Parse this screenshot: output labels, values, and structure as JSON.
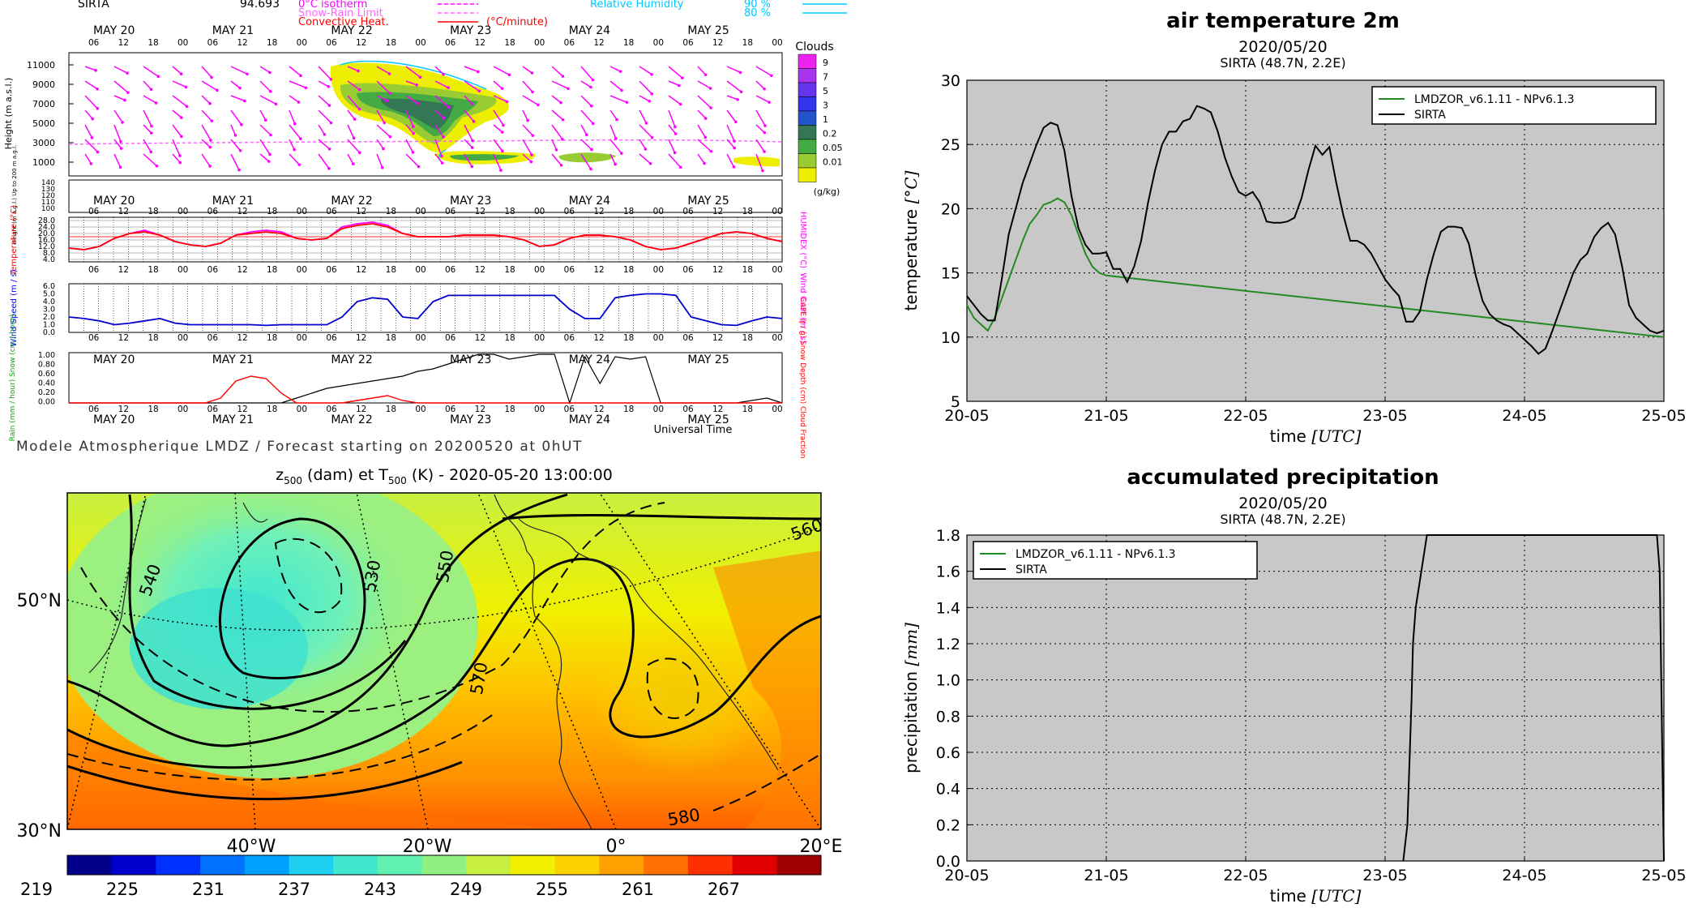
{
  "meteogram": {
    "station": "SIRTA",
    "station_value": "94.693",
    "legend_left": [
      {
        "label": "0°C isotherm",
        "color": "#ff00ff",
        "style": "dashed"
      },
      {
        "label": "Snow-Rain Limit",
        "color": "#ff66ff",
        "style": "dashed"
      },
      {
        "label": "Convective Heat.",
        "color": "#ff0000",
        "style": "solid",
        "unit": "(°C/minute)"
      }
    ],
    "legend_right": [
      {
        "label": "Relative Humidity",
        "value": "90 %",
        "color": "#00c8ff"
      },
      {
        "label": "",
        "value": "80 %",
        "color": "#00c8ff"
      }
    ],
    "days": [
      "MAY 20",
      "MAY 21",
      "MAY 22",
      "MAY 23",
      "MAY 24",
      "MAY 25"
    ],
    "hours": [
      "06",
      "12",
      "18",
      "00"
    ],
    "panel1": {
      "ylabel": "Height (m a.s.l.)",
      "yticks": [
        "11000",
        "9000",
        "7000",
        "5000",
        "3000",
        "1000"
      ],
      "colorbar_title": "Clouds",
      "colorbar_ticks": [
        "9",
        "7",
        "5",
        "3",
        "1",
        "0.2",
        "0.05",
        "0.01"
      ],
      "colorbar_unit": "(g/kg)",
      "colorbar_colors": [
        "#ee22ee",
        "#aa33ee",
        "#6633ee",
        "#3333ee",
        "#2255cc",
        "#337755",
        "#44aa44",
        "#99cc33",
        "#eeee00"
      ]
    },
    "panel1b": {
      "ylabel": "Height (m a.g.l.) Up to 200 m a.g.l.",
      "yticks": [
        "140",
        "130",
        "120",
        "110",
        "100"
      ]
    },
    "panel2": {
      "ylabel_left": "Temperature (°C)",
      "ylabel_right": "HUMIDEX (°C)",
      "yticks": [
        "28.0",
        "24.0",
        "20.0",
        "16.0",
        "12.0",
        "8.0",
        "4.0"
      ],
      "temperature": [
        11,
        10,
        12,
        17,
        20,
        21,
        19,
        15,
        13,
        12,
        14,
        19,
        20,
        21,
        20,
        17,
        16,
        17,
        23,
        25,
        26,
        24,
        20,
        18,
        18,
        18,
        19,
        19,
        19,
        18,
        16,
        12,
        13,
        17,
        19,
        19,
        18,
        16,
        12,
        10,
        11,
        14,
        17,
        20,
        21,
        20,
        17,
        15
      ],
      "humidex": [
        11,
        10,
        12,
        17,
        20,
        22,
        19,
        15,
        13,
        12,
        14,
        19,
        21,
        22,
        21,
        17,
        16,
        17,
        24,
        26,
        27,
        25,
        20,
        18,
        18,
        18,
        19,
        19,
        19,
        18,
        16,
        12,
        13,
        17,
        19,
        19,
        18,
        16,
        12,
        10,
        11,
        14,
        17,
        20,
        21,
        20,
        17,
        15
      ]
    },
    "panel3": {
      "ylabel_left": "Wind Speed (m / s)",
      "ylabel_right": "Wind Gust (m / s)",
      "yticks": [
        "6.0",
        "5.0",
        "4.0",
        "3.0",
        "2.0",
        "1.0",
        "0.0"
      ],
      "wind_speed": [
        2.0,
        1.8,
        1.5,
        1.0,
        1.2,
        1.5,
        1.8,
        1.2,
        1.0,
        1.0,
        1.0,
        1.0,
        1.0,
        0.9,
        1.0,
        1.0,
        1.0,
        1.0,
        2.0,
        4.0,
        4.5,
        4.3,
        2.0,
        1.8,
        4.0,
        4.8,
        4.8,
        4.8,
        4.8,
        4.8,
        4.8,
        4.8,
        4.8,
        3.0,
        1.8,
        1.8,
        4.5,
        4.8,
        5.0,
        5.0,
        4.8,
        2.0,
        1.5,
        1.0,
        0.9,
        1.5,
        2.0,
        1.8
      ]
    },
    "panel4": {
      "ylabel_left": "Rain (mm / hour) Snow (cm / hour)",
      "ylabel_right": "CAPE (J / g) Snow Depth (cm) Cloud Fraction",
      "yticks": [
        "1.00",
        "0.80",
        "0.60",
        "0.40",
        "0.20",
        "0.00"
      ],
      "cloud_fraction": [
        0,
        0,
        0,
        0,
        0,
        0,
        0,
        0,
        0,
        0,
        0,
        0,
        0,
        0,
        0,
        0.1,
        0.2,
        0.3,
        0.35,
        0.4,
        0.45,
        0.5,
        0.55,
        0.65,
        0.7,
        0.8,
        0.9,
        1.0,
        1.0,
        0.9,
        0.95,
        1.0,
        1.0,
        0,
        0.95,
        0.4,
        0.95,
        0.9,
        0.95,
        0,
        0,
        0,
        0,
        0,
        0,
        0.05,
        0.1,
        0.0
      ],
      "rain": [
        0,
        0,
        0,
        0,
        0,
        0,
        0,
        0,
        0,
        0,
        0.1,
        0.45,
        0.55,
        0.5,
        0.2,
        0,
        0,
        0,
        0,
        0.05,
        0.1,
        0.15,
        0.05,
        0,
        0,
        0,
        0,
        0,
        0,
        0,
        0,
        0,
        0,
        0,
        0,
        0,
        0,
        0,
        0,
        0,
        0,
        0,
        0,
        0,
        0,
        0,
        0,
        0
      ]
    },
    "x_title": "Universal Time",
    "footer": "Modele Atmospherique LMDZ / Forecast starting on 20200520 at 0hUT"
  },
  "map": {
    "title_main": "z500 (dam) et T500 (K) - 2020-05-20 13:00:00",
    "title_z": "z",
    "title_sub1": "500",
    "title_mid": " (dam) et T",
    "title_sub2": "500",
    "title_end": " (K) - 2020-05-20 13:00:00",
    "lat_labels": [
      "50°N",
      "30°N"
    ],
    "lon_labels": [
      "40°W",
      "20°W",
      "0°",
      "20°E"
    ],
    "contour_labels": [
      "540",
      "530",
      "550",
      "560",
      "570",
      "580"
    ],
    "colorbar_ticks": [
      "219",
      "225",
      "231",
      "237",
      "243",
      "249",
      "255",
      "261",
      "267"
    ],
    "colorbar_colors": [
      "#00008b",
      "#0000cd",
      "#0030ff",
      "#0070ff",
      "#00a0ff",
      "#20d0f0",
      "#40e8d0",
      "#60f0b0",
      "#90f080",
      "#c8f040",
      "#f0f000",
      "#ffd000",
      "#ffa000",
      "#ff7000",
      "#ff3000",
      "#e00000",
      "#a00000"
    ]
  },
  "chart_data": [
    {
      "type": "line",
      "title": "air temperature 2m",
      "subtitle": "2020/05/20",
      "subtitle2": "SIRTA (48.7N, 2.2E)",
      "xlabel": "time [UTC]",
      "xlabel_prefix": "time ",
      "xlabel_unit": "[UTC]",
      "ylabel": "temperature [°C]",
      "ylabel_prefix": "temperature ",
      "ylabel_unit": "[°C]",
      "xticks": [
        "20-05",
        "21-05",
        "22-05",
        "23-05",
        "24-05",
        "25-05"
      ],
      "xlim": [
        0,
        5
      ],
      "ylim": [
        5,
        30
      ],
      "yticks": [
        "5",
        "10",
        "15",
        "20",
        "25",
        "30"
      ],
      "grid": true,
      "legend": "top-right",
      "series": [
        {
          "name": "LMDZOR_v6.1.11 - NPv6.1.3",
          "color": "#228b22",
          "x": [
            0,
            0.05,
            0.1,
            0.15,
            0.2,
            0.25,
            0.3,
            0.35,
            0.4,
            0.45,
            0.5,
            0.55,
            0.6,
            0.65,
            0.7,
            0.75,
            0.8,
            0.85,
            0.9,
            0.95,
            1.0,
            5.0
          ],
          "y": [
            12.5,
            11.5,
            11.0,
            10.5,
            11.5,
            13.0,
            14.5,
            16.0,
            17.5,
            18.8,
            19.5,
            20.3,
            20.5,
            20.8,
            20.5,
            19.5,
            18.0,
            16.5,
            15.5,
            15.0,
            14.8,
            10.0
          ]
        },
        {
          "name": "SIRTA",
          "color": "#000000",
          "x": [
            0,
            0.05,
            0.1,
            0.15,
            0.2,
            0.25,
            0.3,
            0.35,
            0.4,
            0.45,
            0.5,
            0.55,
            0.6,
            0.65,
            0.7,
            0.75,
            0.8,
            0.85,
            0.9,
            0.95,
            1.0,
            1.05,
            1.1,
            1.15,
            1.2,
            1.25,
            1.3,
            1.35,
            1.4,
            1.45,
            1.5,
            1.55,
            1.6,
            1.65,
            1.7,
            1.75,
            1.8,
            1.85,
            1.9,
            1.95,
            2.0,
            2.05,
            2.1,
            2.15,
            2.2,
            2.25,
            2.3,
            2.35,
            2.4,
            2.45,
            2.5,
            2.55,
            2.6,
            2.65,
            2.7,
            2.75,
            2.8,
            2.85,
            2.9,
            2.95,
            3.0,
            3.05,
            3.1,
            3.15,
            3.2,
            3.25,
            3.3,
            3.35,
            3.4,
            3.45,
            3.5,
            3.55,
            3.6,
            3.65,
            3.7,
            3.75,
            3.8,
            3.85,
            3.9,
            3.95,
            4.0,
            4.05,
            4.1,
            4.15,
            4.2,
            4.25,
            4.3,
            4.35,
            4.4,
            4.45,
            4.5,
            4.55,
            4.6,
            4.65,
            4.7,
            4.75,
            4.8,
            4.85,
            4.9,
            4.95,
            5.0
          ],
          "y": [
            13.2,
            12.5,
            11.8,
            11.3,
            11.3,
            14.5,
            18.0,
            20.0,
            22.0,
            23.5,
            25.0,
            26.3,
            26.7,
            26.5,
            24.5,
            21.0,
            18.5,
            17.2,
            16.5,
            16.5,
            16.6,
            15.3,
            15.3,
            14.3,
            15.5,
            17.5,
            20.5,
            23.0,
            25.0,
            26.0,
            26.0,
            26.8,
            27.0,
            28.0,
            27.8,
            27.5,
            26.0,
            24.0,
            22.5,
            21.3,
            21.0,
            21.3,
            20.5,
            19.0,
            18.9,
            18.9,
            19.0,
            19.3,
            20.8,
            23.0,
            24.9,
            24.2,
            24.8,
            22.0,
            19.5,
            17.5,
            17.5,
            17.2,
            16.5,
            15.5,
            14.5,
            13.8,
            13.2,
            11.2,
            11.2,
            12.0,
            14.5,
            16.5,
            18.2,
            18.6,
            18.6,
            18.5,
            17.3,
            14.8,
            12.8,
            11.8,
            11.3,
            11.0,
            10.8,
            10.3,
            9.8,
            9.3,
            8.7,
            9.1,
            10.5,
            12.0,
            13.5,
            15.0,
            16.0,
            16.5,
            17.8,
            18.5,
            18.9,
            18.0,
            15.5,
            12.5,
            11.5,
            11.0,
            10.5,
            10.3,
            10.5
          ]
        }
      ]
    },
    {
      "type": "line",
      "title": "accumulated precipitation",
      "subtitle": "2020/05/20",
      "subtitle2": "SIRTA (48.7N, 2.2E)",
      "xlabel": "time [UTC]",
      "xlabel_prefix": "time ",
      "xlabel_unit": "[UTC]",
      "ylabel": "precipitation [mm]",
      "ylabel_prefix": "precipitation ",
      "ylabel_unit": "[mm]",
      "xticks": [
        "20-05",
        "21-05",
        "22-05",
        "23-05",
        "24-05",
        "25-05"
      ],
      "xlim": [
        0,
        5
      ],
      "ylim": [
        0,
        1.8
      ],
      "yticks": [
        "0.0",
        "0.2",
        "0.4",
        "0.6",
        "0.8",
        "1.0",
        "1.2",
        "1.4",
        "1.6",
        "1.8"
      ],
      "grid": true,
      "legend": "top-left",
      "series": [
        {
          "name": "LMDZOR_v6.1.11 - NPv6.1.3",
          "color": "#228b22",
          "x": [],
          "y": []
        },
        {
          "name": "SIRTA",
          "color": "#000000",
          "x": [
            3.13,
            3.16,
            3.19,
            3.2,
            3.22,
            3.26,
            3.3,
            4.95,
            4.97,
            4.99,
            5.0
          ],
          "y": [
            0.0,
            0.2,
            0.9,
            1.2,
            1.4,
            1.6,
            1.8,
            1.8,
            1.6,
            0.5,
            0.0
          ]
        }
      ]
    }
  ]
}
